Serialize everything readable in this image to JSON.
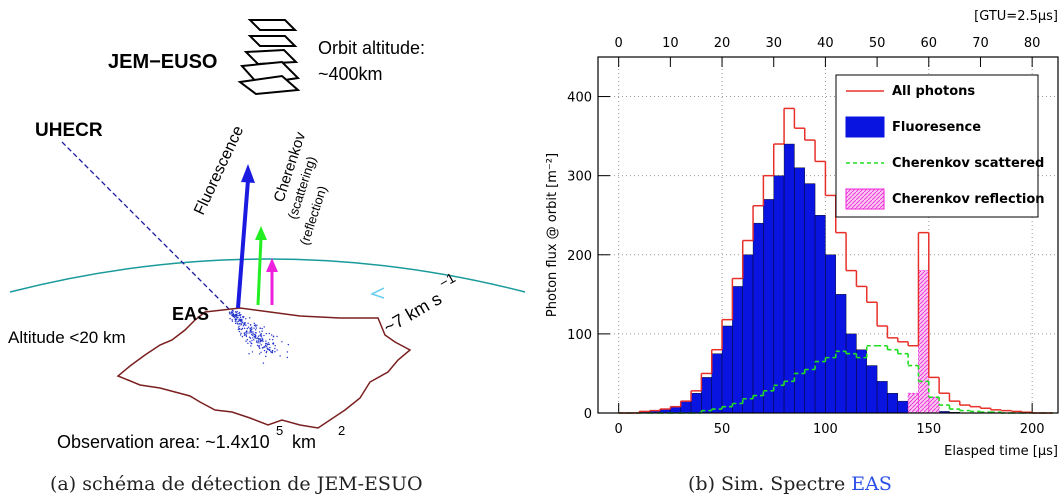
{
  "diagram": {
    "instrument": "JEM−EUSO",
    "orbit_line1": "Orbit altitude:",
    "orbit_line2": "~400km",
    "uhecr": "UHECR",
    "fluorescence": "Fluorescence",
    "cherenkov": "Cherenkov",
    "scattering": "(scattering)",
    "reflection": "(reflection)",
    "eas": "EAS",
    "altitude": "Altitude <20 km",
    "speed": "~7 km s",
    "speed_exp": "−1",
    "area": "Observation area: ~1.4x10",
    "area_exp": "5",
    "area_unit": "km",
    "area_unit_exp": "2"
  },
  "caption_a": "(a) schéma de détection de JEM-ESUO",
  "caption_b": "(b) Sim. Spectre",
  "caption_b_link": "EAS",
  "chart_data": {
    "type": "histogram",
    "x_label": "Elasped time [µs]",
    "y_label": "Photon flux @ orbit [m⁻²]",
    "x2_label": "[GTU=2.5µs]",
    "xlim": [
      -10,
      212.5
    ],
    "xticks": [
      0,
      50,
      100,
      150,
      200
    ],
    "x2lim": [
      -4,
      85
    ],
    "x2ticks": [
      0,
      10,
      20,
      30,
      40,
      50,
      60,
      70,
      80
    ],
    "ylim": [
      0,
      450
    ],
    "yticks": [
      0,
      100,
      200,
      300,
      400
    ],
    "grid": true,
    "legend": "upper right",
    "bins": [
      0,
      5,
      10,
      15,
      20,
      25,
      30,
      35,
      40,
      45,
      50,
      55,
      60,
      65,
      70,
      75,
      80,
      85,
      90,
      95,
      100,
      105,
      110,
      115,
      120,
      125,
      130,
      135,
      140,
      145,
      150,
      155,
      160,
      165,
      170,
      175,
      180,
      185,
      190,
      195,
      200,
      205,
      210
    ],
    "series": [
      {
        "name": "All photons",
        "color": "#e8302a",
        "style": "step",
        "values": [
          0,
          0,
          2,
          3,
          5,
          8,
          15,
          28,
          50,
          80,
          118,
          170,
          218,
          262,
          300,
          340,
          385,
          360,
          345,
          318,
          275,
          228,
          180,
          160,
          140,
          110,
          95,
          90,
          85,
          228,
          45,
          25,
          15,
          10,
          8,
          6,
          4,
          3,
          2,
          1,
          0,
          0
        ]
      },
      {
        "name": "Fluoresence",
        "color": "#0a14e0",
        "style": "fill",
        "values": [
          0,
          0,
          2,
          3,
          5,
          8,
          15,
          25,
          45,
          75,
          110,
          160,
          200,
          240,
          270,
          300,
          340,
          310,
          290,
          250,
          200,
          150,
          100,
          80,
          60,
          40,
          25,
          15,
          10,
          5,
          3,
          2,
          1,
          0,
          0,
          0,
          0,
          0,
          0,
          0,
          0,
          0
        ]
      },
      {
        "name": "Cherenkov scattered",
        "color": "#22dd22",
        "style": "dashed",
        "values": [
          0,
          0,
          0,
          0,
          0,
          0,
          0,
          0,
          3,
          5,
          8,
          12,
          18,
          22,
          28,
          35,
          40,
          50,
          55,
          65,
          70,
          78,
          75,
          70,
          85,
          85,
          80,
          75,
          60,
          40,
          20,
          10,
          5,
          3,
          2,
          1,
          1,
          0,
          0,
          0,
          0,
          0
        ]
      },
      {
        "name": "Cherenkov reflection",
        "color": "#f020d8",
        "style": "hatch",
        "values": [
          0,
          0,
          0,
          0,
          0,
          0,
          0,
          0,
          0,
          0,
          0,
          0,
          0,
          0,
          0,
          0,
          0,
          0,
          0,
          0,
          0,
          0,
          0,
          0,
          0,
          0,
          0,
          0,
          25,
          180,
          20,
          0,
          0,
          0,
          0,
          0,
          0,
          0,
          0,
          0,
          0,
          0
        ]
      }
    ]
  }
}
